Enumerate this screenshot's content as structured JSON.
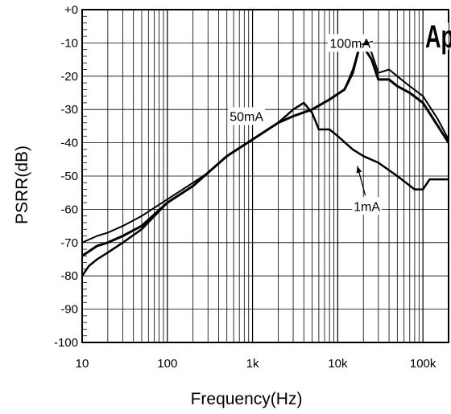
{
  "chart_data": {
    "type": "line",
    "xscale": "log",
    "xlabel": "Frequency(Hz)",
    "ylabel": "PSRR(dB)",
    "xlim": [
      10,
      200000
    ],
    "ylim": [
      -100,
      0
    ],
    "grid": true,
    "xtick_labels": [
      {
        "value": 10,
        "label": "10"
      },
      {
        "value": 100,
        "label": "100"
      },
      {
        "value": 1000,
        "label": "1k"
      },
      {
        "value": 10000,
        "label": "10k"
      },
      {
        "value": 100000,
        "label": "100k"
      }
    ],
    "ytick_labels": [
      {
        "value": 0,
        "label": "+0"
      },
      {
        "value": -10,
        "label": "-10"
      },
      {
        "value": -20,
        "label": "-20"
      },
      {
        "value": -30,
        "label": "-30"
      },
      {
        "value": -40,
        "label": "-40"
      },
      {
        "value": -50,
        "label": "-50"
      },
      {
        "value": -60,
        "label": "-60"
      },
      {
        "value": -70,
        "label": "-70"
      },
      {
        "value": -80,
        "label": "-80"
      },
      {
        "value": -90,
        "label": "-90"
      },
      {
        "value": -100,
        "label": "-100"
      }
    ],
    "series": [
      {
        "name": "100mA",
        "x": [
          10,
          15,
          20,
          30,
          50,
          100,
          200,
          300,
          500,
          1000,
          2000,
          3000,
          5000,
          8000,
          12000,
          15000,
          18000,
          21000,
          25000,
          30000,
          40000,
          50000,
          70000,
          100000,
          150000,
          200000
        ],
        "y": [
          -74,
          -71,
          -70,
          -68,
          -65,
          -58,
          -53,
          -49,
          -44,
          -39,
          -34,
          -32,
          -30,
          -27,
          -24,
          -19,
          -11,
          -12,
          -15,
          -21,
          -21,
          -23,
          -25,
          -28,
          -35,
          -40
        ]
      },
      {
        "name": "50mA",
        "x": [
          10,
          15,
          20,
          30,
          50,
          100,
          200,
          300,
          500,
          1000,
          2000,
          3000,
          5000,
          8000,
          12000,
          15000,
          18000,
          20000,
          25000,
          30000,
          40000,
          50000,
          70000,
          100000,
          150000,
          200000
        ],
        "y": [
          -70,
          -68,
          -67,
          -65,
          -62,
          -57,
          -52,
          -49,
          -44,
          -39,
          -34,
          -32,
          -30,
          -27,
          -24,
          -18,
          -11,
          -10,
          -13,
          -19,
          -18,
          -20,
          -23,
          -26,
          -33,
          -39
        ]
      },
      {
        "name": "1mA",
        "x": [
          10,
          12,
          15,
          20,
          30,
          50,
          100,
          200,
          300,
          500,
          1000,
          2000,
          3000,
          4000,
          5000,
          6000,
          8000,
          10000,
          15000,
          20000,
          30000,
          50000,
          80000,
          100000,
          120000,
          150000,
          200000
        ],
        "y": [
          -80,
          -77,
          -75,
          -73,
          -70,
          -66,
          -58,
          -53,
          -49,
          -44,
          -39,
          -34,
          -30,
          -28,
          -31,
          -36,
          -36,
          -38,
          -42,
          -44,
          -46,
          -50,
          -54,
          -54,
          -51,
          -51,
          -51
        ]
      }
    ],
    "annotations": [
      {
        "text": "100mA",
        "x": 14000,
        "y": -10
      },
      {
        "text": "50mA",
        "x": 850,
        "y": -32
      },
      {
        "text": "1mA",
        "x": 22000,
        "y": -59
      }
    ],
    "logo_text": "Ap"
  }
}
